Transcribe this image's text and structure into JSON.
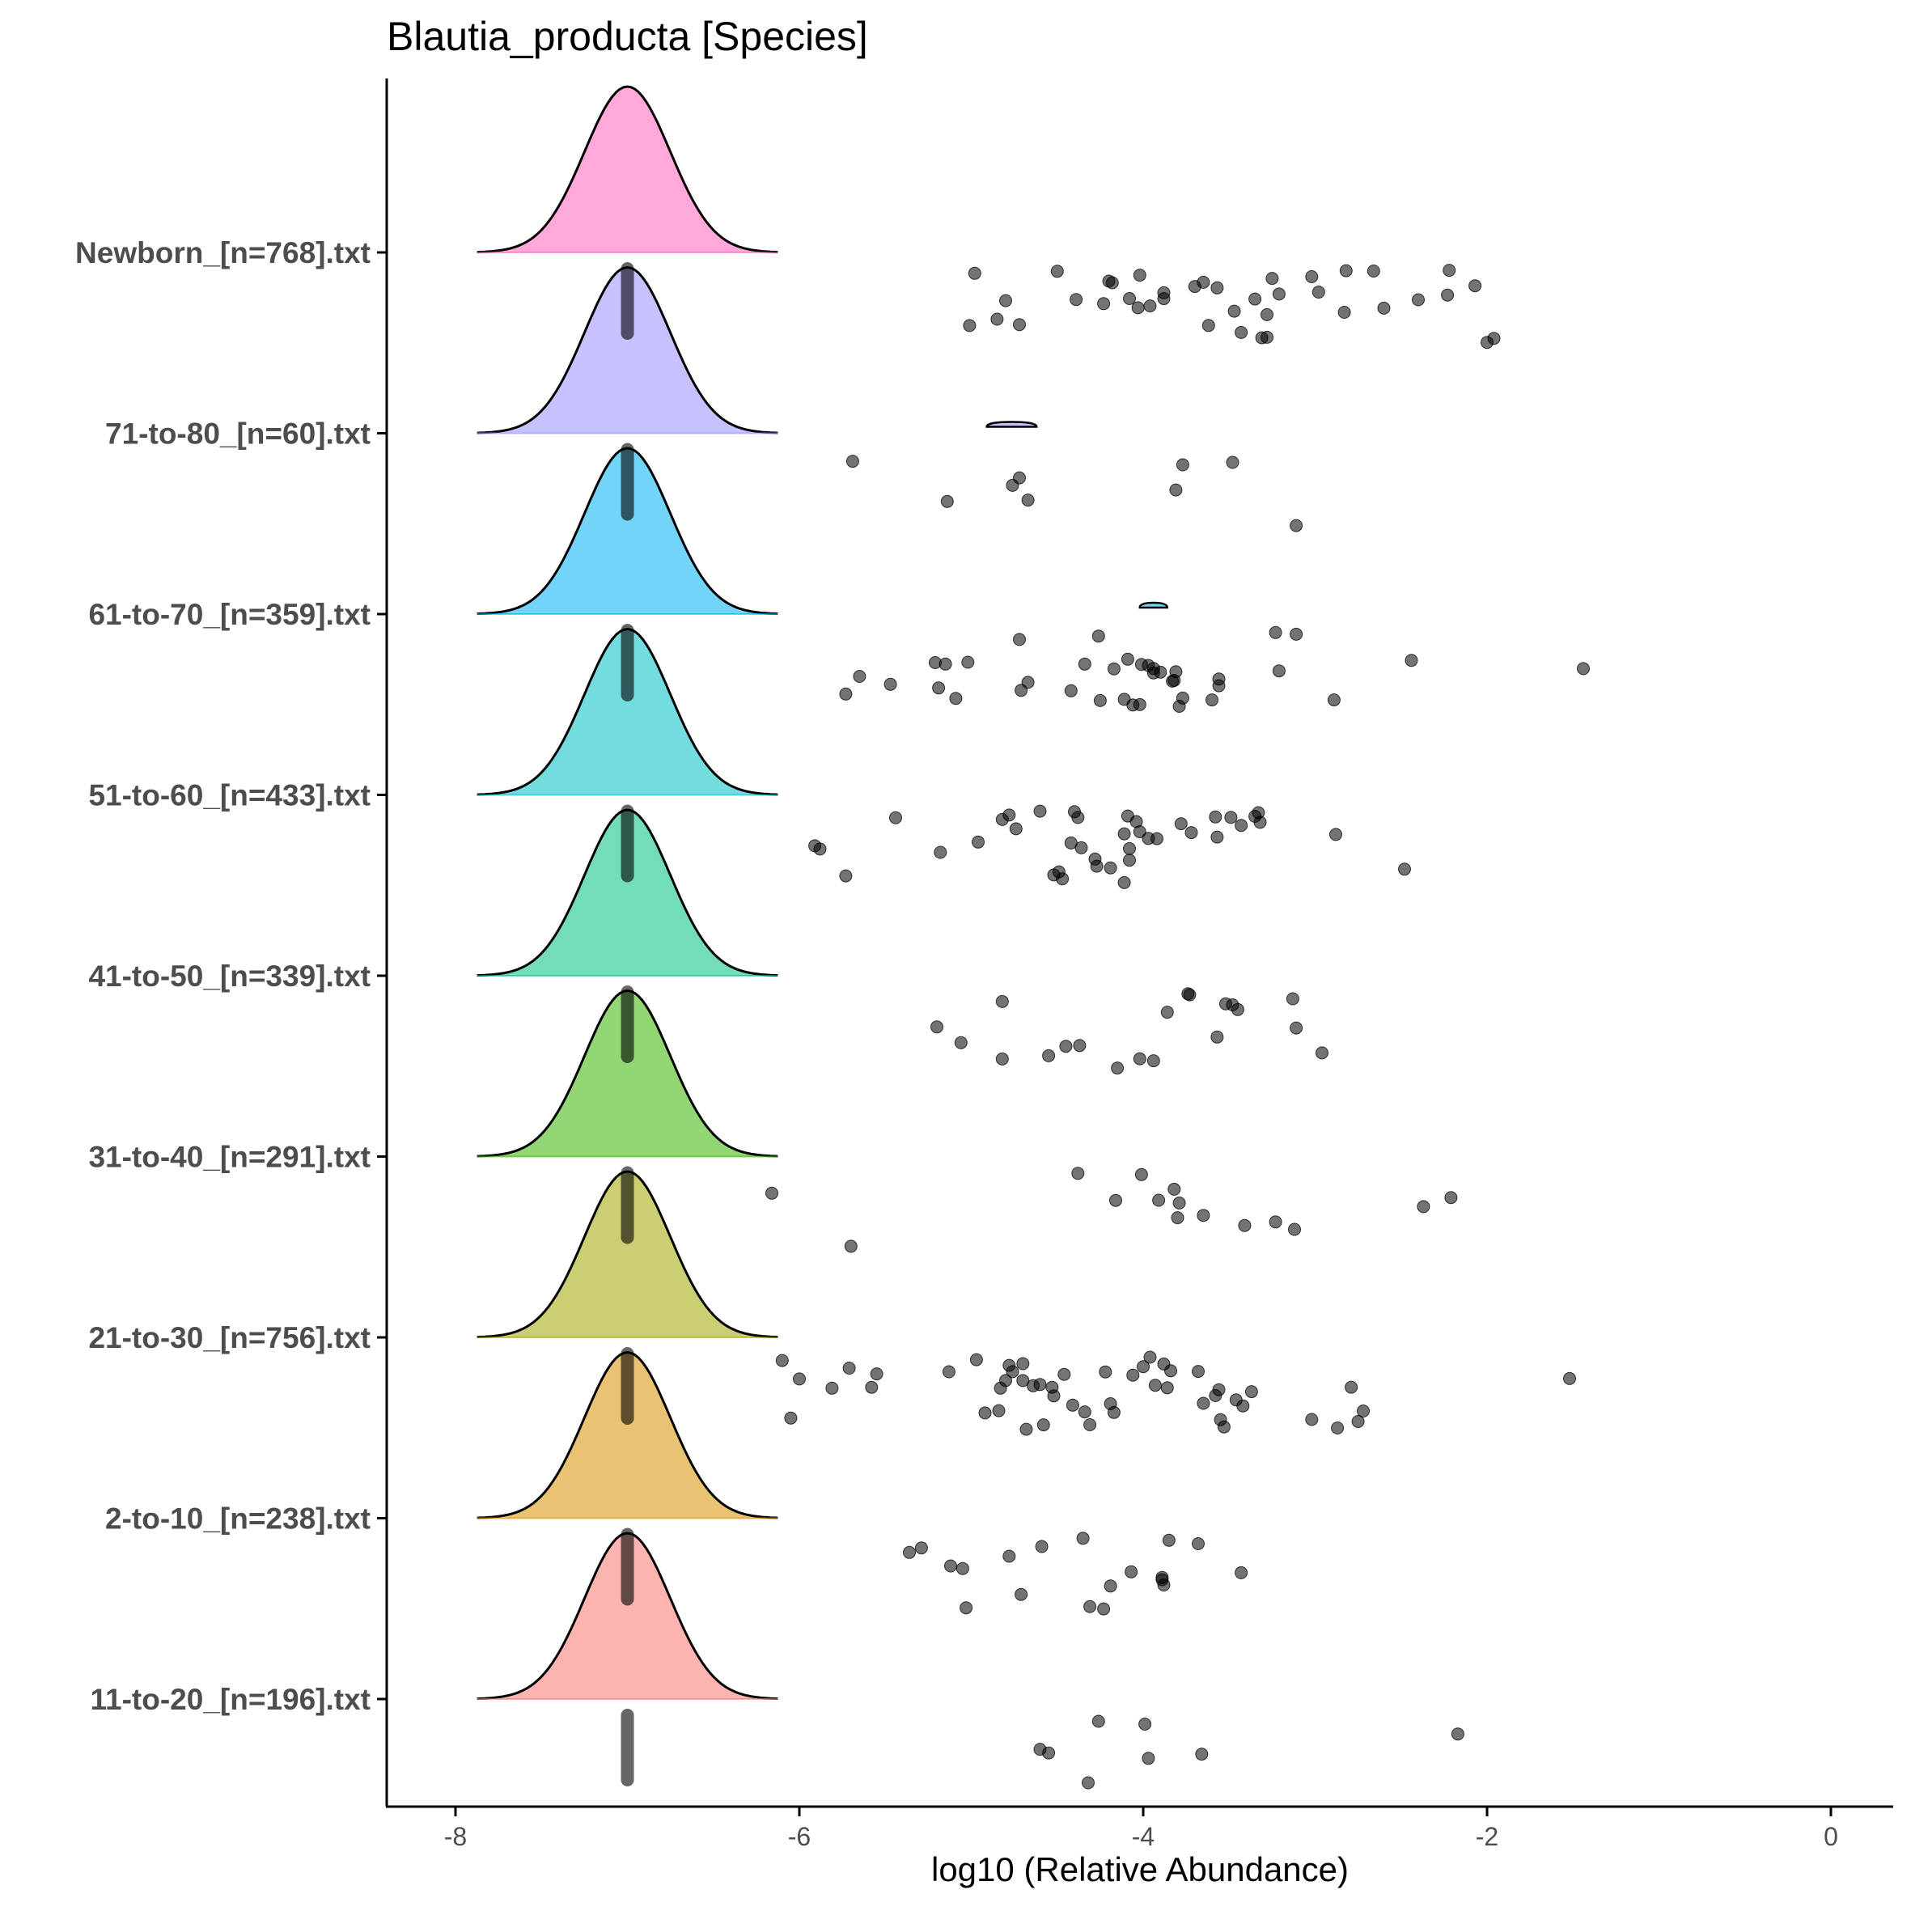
{
  "chart_data": {
    "type": "ridgeline",
    "title": "Blautia_producta [Species]",
    "xlabel": "log10 (Relative Abundance)",
    "ylabel": "",
    "xlim": [
      -8.4,
      0.4
    ],
    "x_ticks": [
      -8,
      -6,
      -4,
      -2,
      0
    ],
    "x_tick_labels": [
      "-8",
      "-6",
      "-4",
      "-2",
      "0"
    ],
    "grid": false,
    "legend": "none",
    "series": [
      {
        "name": "11-to-20_[n=196].txt",
        "color": "#F8766D",
        "peak": -7,
        "sd": 0.25,
        "mini": null,
        "points": [
          -4.55,
          -3.97,
          -3.99,
          -2.17,
          -4.6,
          -3.66,
          -4.26,
          -4.32
        ]
      },
      {
        "name": "2-to-10_[n=238].txt",
        "color": "#D89000",
        "peak": -7,
        "sd": 0.25,
        "mini": null,
        "points": [
          -3.89,
          -5.12,
          -4.78,
          -4.71,
          -3.88,
          -3.85,
          -3.43,
          -5.36,
          -4.19,
          -4.59,
          -3.89,
          -4.07,
          -5.29,
          -4.35,
          -4.31,
          -4.23,
          -3.68,
          -5.05,
          -5.03
        ]
      },
      {
        "name": "21-to-30_[n=756].txt",
        "color": "#A3A500",
        "peak": -7,
        "sd": 0.25,
        "mini": null,
        "points": [
          -5.71,
          -4.64,
          -4.52,
          -4.41,
          -4.06,
          -4.0,
          -4.68,
          -3.86,
          -3.68,
          -3.58,
          -6.0,
          -4.78,
          -4.92,
          -4.7,
          -4.8,
          -4.97,
          -4.31,
          -4.22,
          -2.75,
          -3.56,
          -4.76,
          -3.46,
          -4.6,
          -4.34,
          -4.19,
          -3.88,
          -3.84,
          -4.83,
          -6.1,
          -3.96,
          -3.93,
          -3.42,
          -3.65,
          -3.53,
          -1.52,
          -2.79,
          -3.37,
          -4.53,
          -6.05,
          -5.81,
          -5.58,
          -5.55,
          -5.13,
          -4.84,
          -4.7,
          -4.46,
          -4.17,
          -3.02,
          -2.87,
          -4.58,
          -3.55,
          -2.72
        ]
      },
      {
        "name": "31-to-40_[n=291].txt",
        "color": "#39B600",
        "peak": -7,
        "sd": 0.25,
        "mini": null,
        "points": [
          -3.23,
          -3.65,
          -4.01,
          -2.21,
          -3.91,
          -3.82,
          -3.79,
          -3.41,
          -3.12,
          -6.16,
          -5.7,
          -4.38,
          -4.16,
          -3.8,
          -2.37
        ]
      },
      {
        "name": "41-to-50_[n=339].txt",
        "color": "#00BF7D",
        "peak": -7,
        "sd": 0.25,
        "mini": null,
        "points": [
          -3.13,
          -4.15,
          -5.2,
          -4.82,
          -3.57,
          -3.11,
          -4.82,
          -2.96,
          -3.94,
          -3.86,
          -3.74,
          -3.52,
          -4.45,
          -4.37,
          -5.06,
          -4.02,
          -3.45,
          -4.55,
          -3.48,
          -3.73
        ]
      },
      {
        "name": "51-to-60_[n=433].txt",
        "color": "#00BFC4",
        "peak": -7,
        "sd": 0.25,
        "mini": null,
        "points": [
          -3.49,
          -3.33,
          -5.18,
          -4.52,
          -5.73,
          -3.32,
          -5.88,
          -4.78,
          -3.72,
          -4.08,
          -4.09,
          -3.97,
          -4.74,
          -4.11,
          -4.49,
          -4.04,
          -3.78,
          -4.6,
          -4.28,
          -5.44,
          -4.96,
          -4.82,
          -4.36,
          -4.42,
          -4.4,
          -2.48,
          -5.91,
          -4.19,
          -3.57,
          -4.11,
          -4.27,
          -4.08,
          -4.02,
          -3.92,
          -3.58,
          -4.47,
          -4.38,
          -3.35,
          -3.43,
          -2.88
        ]
      },
      {
        "name": "61-to-70_[n=359].txt",
        "color": "#00B0F6",
        "peak": -7,
        "sd": 0.25,
        "mini": {
          "x0": -4.02,
          "x1": -3.86
        },
        "points": [
          -3.23,
          -5.65,
          -4.34,
          -4.09,
          -3.81,
          -3.6,
          -3.21,
          -5.21,
          -4.72,
          -4.11,
          -3.83,
          -1.44,
          -2.89,
          -4.67,
          -3.97,
          -4.02,
          -5.09,
          -5.02,
          -3.94,
          -5.47,
          -4.42,
          -4.25,
          -3.9,
          -3.79,
          -3.56,
          -5.73,
          -5.15,
          -4.26,
          -4.06,
          -3.94,
          -3.82,
          -2.44,
          -5.19,
          -4.71,
          -4.17,
          -4.01,
          -3.77,
          -3.56,
          -3.11
        ]
      },
      {
        "name": "71-to-80_[n=60].txt",
        "color": "#9590FF",
        "peak": -7,
        "sd": 0.25,
        "mini": {
          "x0": -4.91,
          "x1": -4.62
        },
        "points": [
          -4.72,
          -4.76,
          -3.11,
          -4.67,
          -5.69,
          -5.14,
          -3.48,
          -3.77,
          -3.81
        ]
      },
      {
        "name": "Newborn_[n=768].txt",
        "color": "#FF62BC",
        "peak": -7,
        "sd": 0.25,
        "mini": null,
        "points": [
          -3.88,
          -2.22,
          -2.0,
          -2.6,
          -4.5,
          -4.08,
          -4.18,
          -4.85,
          -3.7,
          -3.62,
          -2.98,
          -1.96,
          -3.28,
          -3.35,
          -3.43,
          -3.65,
          -2.23,
          -4.8,
          -3.28,
          -2.83,
          -4.02,
          -4.2,
          -3.96,
          -3.57,
          -4.39,
          -4.03,
          -3.21,
          -2.82,
          -4.98,
          -5.01,
          -4.23,
          -3.47,
          -3.31,
          -3.02,
          -2.4,
          -2.07,
          -3.88,
          -2.66,
          -3.25,
          -4.72
        ]
      }
    ]
  }
}
